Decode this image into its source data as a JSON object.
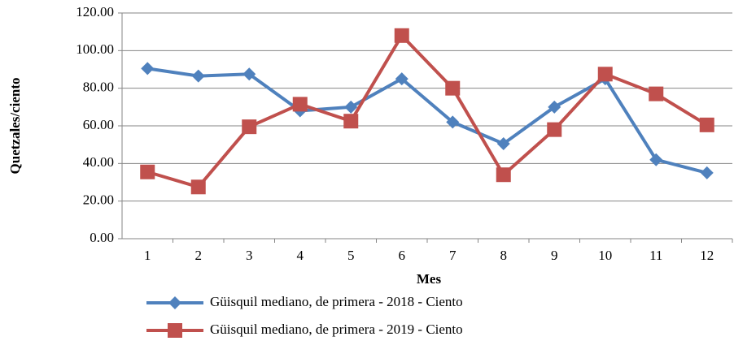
{
  "chart_data": {
    "type": "line",
    "x_label": "Mes",
    "y_label": "Quetzales/ciento",
    "categories": [
      1,
      2,
      3,
      4,
      5,
      6,
      7,
      8,
      9,
      10,
      11,
      12
    ],
    "series": [
      {
        "name": "Güisquil mediano, de primera - 2018 - Ciento",
        "color": "#4f81bd",
        "marker": "diamond",
        "values": [
          90.5,
          86.5,
          87.5,
          68,
          70,
          85,
          62,
          50.5,
          70,
          85,
          42,
          35
        ]
      },
      {
        "name": "Güisquil mediano, de primera - 2019 - Ciento",
        "color": "#c0504d",
        "marker": "square",
        "values": [
          35.5,
          27.5,
          59.5,
          71.5,
          62.5,
          108,
          80,
          34,
          58,
          87.5,
          77,
          60.5
        ]
      }
    ],
    "ylim": [
      0,
      120
    ],
    "yticks": [
      {
        "value": 0,
        "label": "0.00"
      },
      {
        "value": 20,
        "label": "20.00"
      },
      {
        "value": 40,
        "label": "40.00"
      },
      {
        "value": 60,
        "label": "60.00"
      },
      {
        "value": 80,
        "label": "80.00"
      },
      {
        "value": 100,
        "label": "100.00"
      },
      {
        "value": 120,
        "label": "120.00"
      }
    ],
    "grid": true
  }
}
